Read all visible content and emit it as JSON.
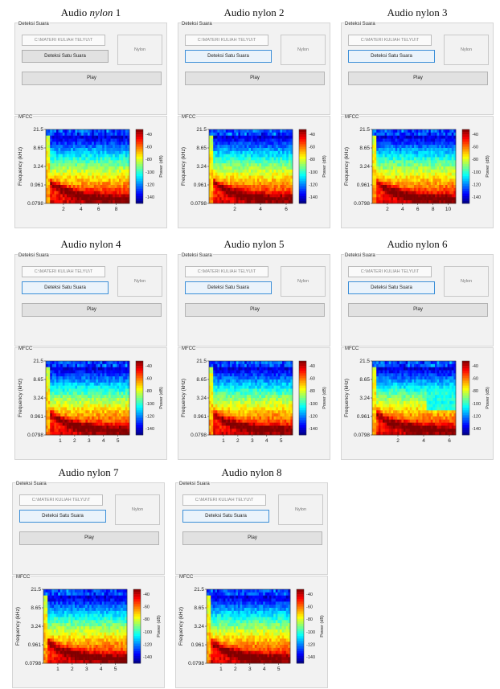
{
  "figures": [
    {
      "caption_prefix": "Audio ",
      "caption_italic": "nylon",
      "caption_suffix": " 1",
      "detect_focused": false,
      "xticks": [
        2,
        4,
        6,
        8
      ],
      "xmax": 9.5
    },
    {
      "caption_prefix": "Audio nylon 2",
      "caption_italic": "",
      "caption_suffix": "",
      "detect_focused": true,
      "xticks": [
        2,
        4,
        6
      ],
      "xmax": 6.5
    },
    {
      "caption_prefix": "Audio nylon 3",
      "caption_italic": "",
      "caption_suffix": "",
      "detect_focused": true,
      "xticks": [
        2,
        4,
        6,
        8,
        10
      ],
      "xmax": 11
    },
    {
      "caption_prefix": "Audio nylon 4",
      "caption_italic": "",
      "caption_suffix": "",
      "detect_focused": true,
      "xticks": [
        1,
        2,
        3,
        4,
        5
      ],
      "xmax": 5.8
    },
    {
      "caption_prefix": "Audio nylon 5",
      "caption_italic": "",
      "caption_suffix": "",
      "detect_focused": true,
      "xticks": [
        1,
        2,
        3,
        4,
        5
      ],
      "xmax": 5.8
    },
    {
      "caption_prefix": "Audio nylon 6",
      "caption_italic": "",
      "caption_suffix": "",
      "detect_focused": true,
      "xticks": [
        2,
        4,
        6
      ],
      "xmax": 6.5
    },
    {
      "caption_prefix": "Audio nylon 7",
      "caption_italic": "",
      "caption_suffix": "",
      "detect_focused": true,
      "xticks": [
        1,
        2,
        3,
        4,
        5
      ],
      "xmax": 5.8
    },
    {
      "caption_prefix": "Audio nylon 8",
      "caption_italic": "",
      "caption_suffix": "",
      "detect_focused": true,
      "xticks": [
        1,
        2,
        3,
        4,
        5
      ],
      "xmax": 5.8
    }
  ],
  "ui": {
    "panel_title": "Deteksi Suara",
    "path_value": "C:\\MATERI KULIAH TELYU\\T",
    "detect_label": "Deteksi Satu Suara",
    "result_value": "Nylon",
    "play_label": "Play",
    "mfcc_title": "MFCC"
  },
  "chart_data": {
    "type": "heatmap",
    "ylabel": "Frequency (kHz)",
    "yticks": [
      "21.5",
      "8.65",
      "3.24",
      "0.961",
      "0.0798"
    ],
    "colorbar_label": "Power (dB)",
    "colorbar_ticks": [
      -40,
      -60,
      -80,
      -100,
      -120,
      -140
    ],
    "colormap": [
      "#00008f",
      "#0040ff",
      "#00c0ff",
      "#40ffbf",
      "#bfff40",
      "#ffc000",
      "#ff4000",
      "#8f0000"
    ]
  }
}
